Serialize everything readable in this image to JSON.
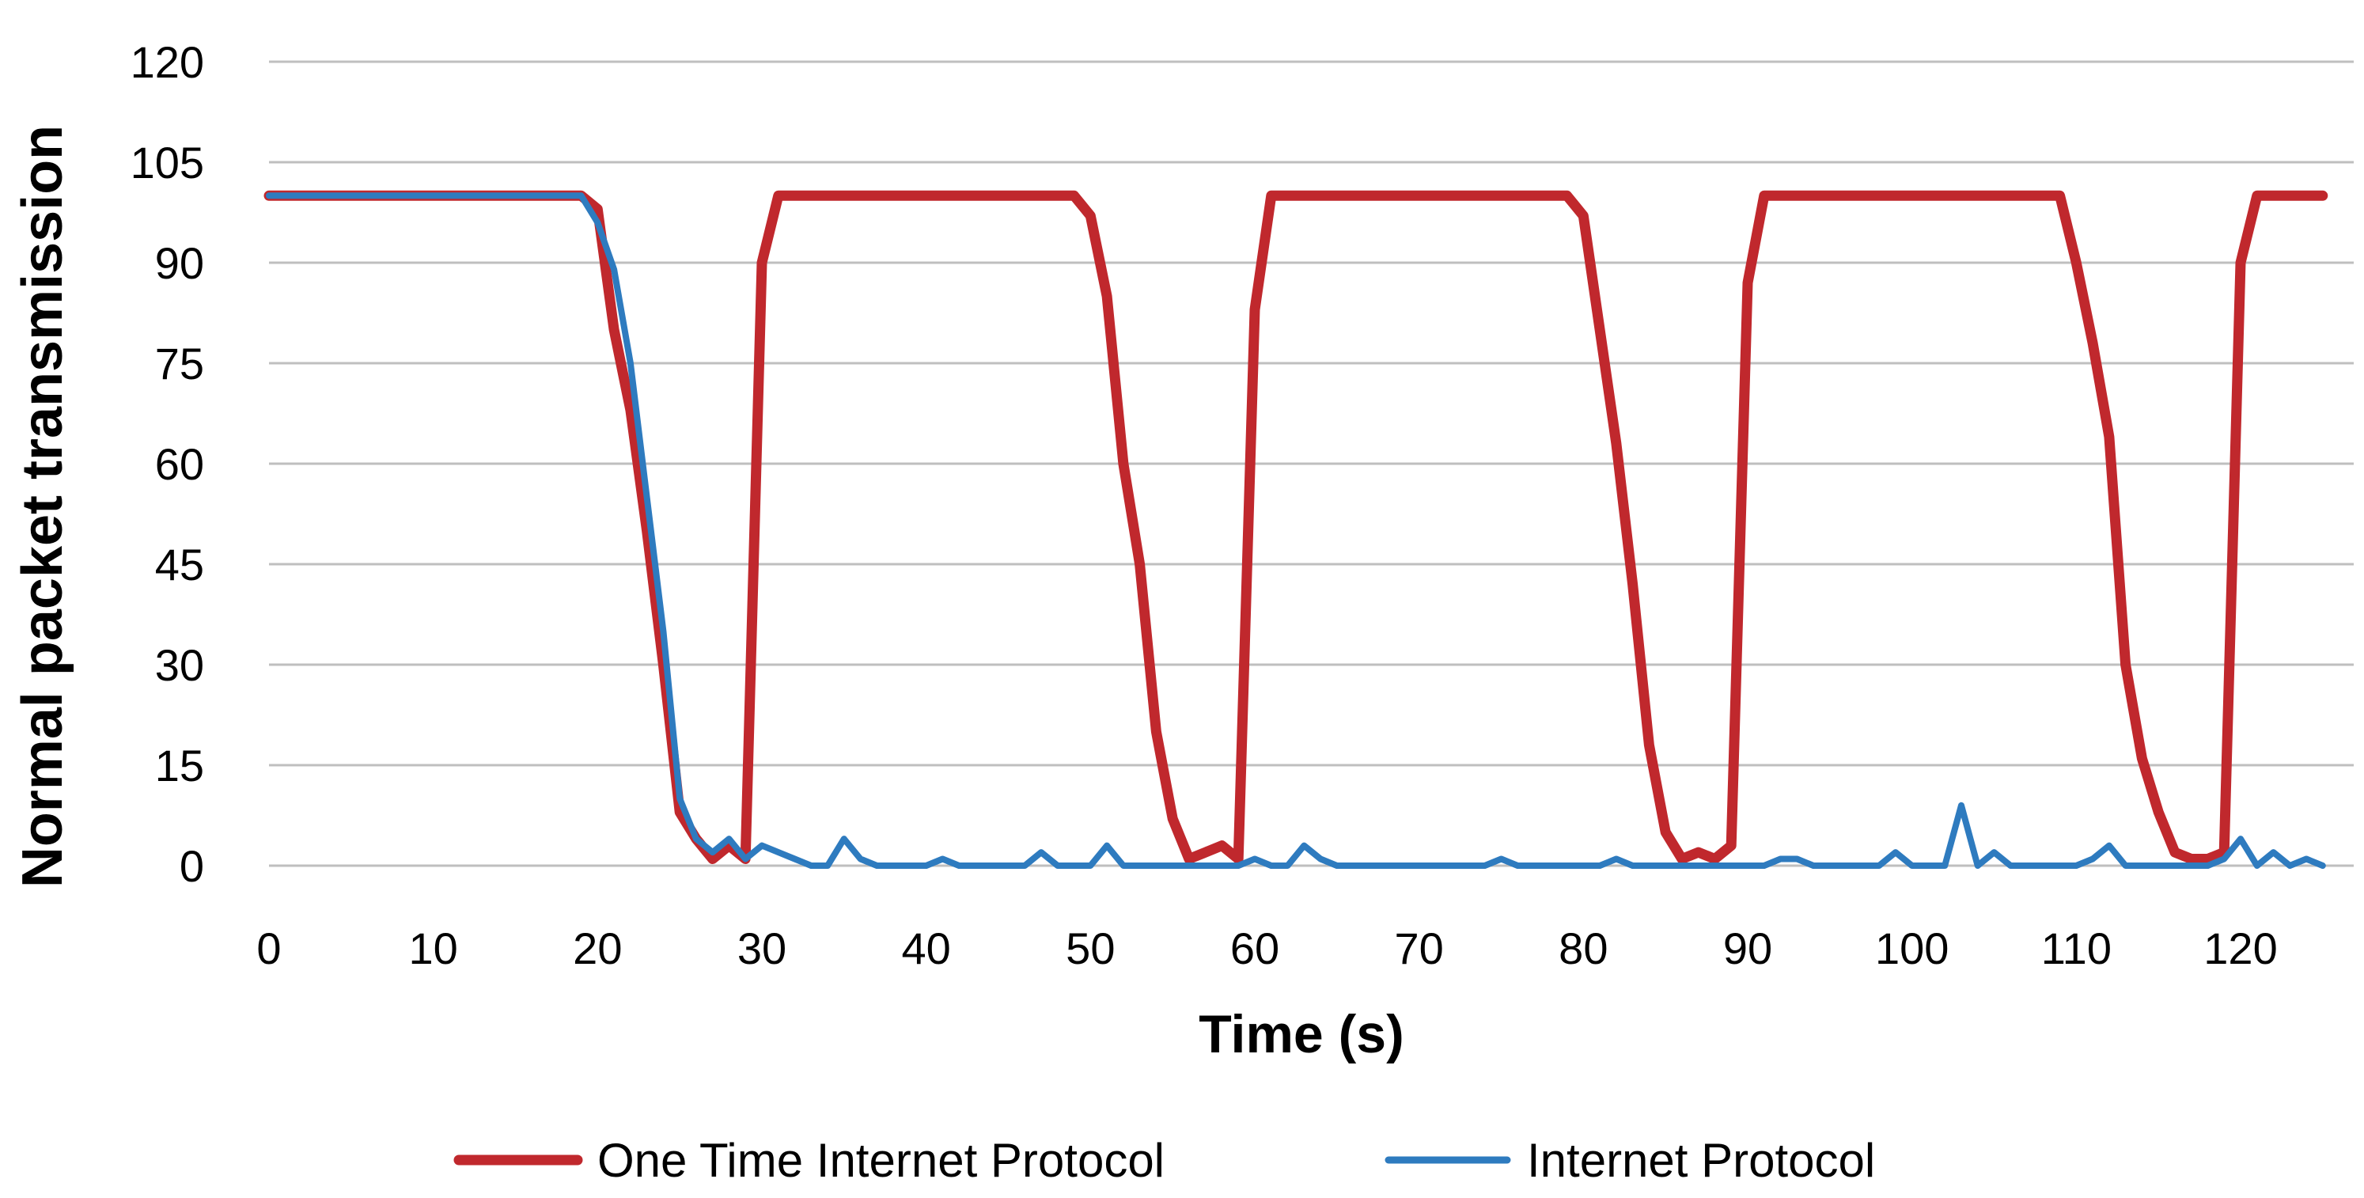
{
  "chart_data": {
    "type": "line",
    "title": "",
    "xlabel": "Time (s)",
    "ylabel": "Normal packet transmission",
    "xlim": [
      0,
      126
    ],
    "ylim": [
      0,
      120
    ],
    "x_ticks": [
      0,
      10,
      20,
      30,
      40,
      50,
      60,
      70,
      80,
      90,
      100,
      110,
      120
    ],
    "y_ticks": [
      0,
      15,
      30,
      45,
      60,
      75,
      90,
      105,
      120
    ],
    "grid": "horizontal",
    "legend_position": "bottom",
    "series": [
      {
        "name": "One Time Internet Protocol",
        "color": "#c0282d",
        "points": [
          [
            0,
            100
          ],
          [
            19,
            100
          ],
          [
            20,
            98
          ],
          [
            21,
            80
          ],
          [
            22,
            68
          ],
          [
            23,
            50
          ],
          [
            24,
            30
          ],
          [
            25,
            8
          ],
          [
            26,
            4
          ],
          [
            27,
            1
          ],
          [
            28,
            3
          ],
          [
            29,
            1
          ],
          [
            30,
            90
          ],
          [
            31,
            100
          ],
          [
            49,
            100
          ],
          [
            50,
            97
          ],
          [
            51,
            85
          ],
          [
            52,
            60
          ],
          [
            53,
            45
          ],
          [
            54,
            20
          ],
          [
            55,
            7
          ],
          [
            56,
            1
          ],
          [
            57,
            2
          ],
          [
            58,
            3
          ],
          [
            59,
            1
          ],
          [
            60,
            83
          ],
          [
            61,
            100
          ],
          [
            79,
            100
          ],
          [
            80,
            97
          ],
          [
            81,
            80
          ],
          [
            82,
            63
          ],
          [
            83,
            42
          ],
          [
            84,
            18
          ],
          [
            85,
            5
          ],
          [
            86,
            1
          ],
          [
            87,
            2
          ],
          [
            88,
            1
          ],
          [
            89,
            3
          ],
          [
            90,
            87
          ],
          [
            91,
            100
          ],
          [
            109,
            100
          ],
          [
            110,
            90
          ],
          [
            111,
            78
          ],
          [
            112,
            64
          ],
          [
            113,
            30
          ],
          [
            114,
            16
          ],
          [
            115,
            8
          ],
          [
            116,
            2
          ],
          [
            117,
            1
          ],
          [
            118,
            1
          ],
          [
            119,
            2
          ],
          [
            120,
            90
          ],
          [
            121,
            100
          ],
          [
            125,
            100
          ]
        ]
      },
      {
        "name": "Internet Protocol",
        "color": "#2e7bbf",
        "points": [
          [
            0,
            100
          ],
          [
            19,
            100
          ],
          [
            20,
            96
          ],
          [
            21,
            89
          ],
          [
            22,
            75
          ],
          [
            23,
            55
          ],
          [
            24,
            35
          ],
          [
            25,
            10
          ],
          [
            26,
            4
          ],
          [
            27,
            2
          ],
          [
            28,
            4
          ],
          [
            29,
            1
          ],
          [
            30,
            3
          ],
          [
            31,
            2
          ],
          [
            32,
            1
          ],
          [
            33,
            0
          ],
          [
            34,
            0
          ],
          [
            35,
            4
          ],
          [
            36,
            1
          ],
          [
            37,
            0
          ],
          [
            40,
            0
          ],
          [
            41,
            1
          ],
          [
            42,
            0
          ],
          [
            46,
            0
          ],
          [
            47,
            2
          ],
          [
            48,
            0
          ],
          [
            50,
            0
          ],
          [
            51,
            3
          ],
          [
            52,
            0
          ],
          [
            59,
            0
          ],
          [
            60,
            1
          ],
          [
            61,
            0
          ],
          [
            62,
            0
          ],
          [
            63,
            3
          ],
          [
            64,
            1
          ],
          [
            65,
            0
          ],
          [
            74,
            0
          ],
          [
            75,
            1
          ],
          [
            76,
            0
          ],
          [
            81,
            0
          ],
          [
            82,
            1
          ],
          [
            83,
            0
          ],
          [
            91,
            0
          ],
          [
            92,
            1
          ],
          [
            93,
            1
          ],
          [
            94,
            0
          ],
          [
            98,
            0
          ],
          [
            99,
            2
          ],
          [
            100,
            0
          ],
          [
            102,
            0
          ],
          [
            103,
            9
          ],
          [
            104,
            0
          ],
          [
            105,
            2
          ],
          [
            106,
            0
          ],
          [
            110,
            0
          ],
          [
            111,
            1
          ],
          [
            112,
            3
          ],
          [
            113,
            0
          ],
          [
            118,
            0
          ],
          [
            119,
            1
          ],
          [
            120,
            4
          ],
          [
            121,
            0
          ],
          [
            122,
            2
          ],
          [
            123,
            0
          ],
          [
            124,
            1
          ],
          [
            125,
            0
          ]
        ]
      }
    ]
  }
}
